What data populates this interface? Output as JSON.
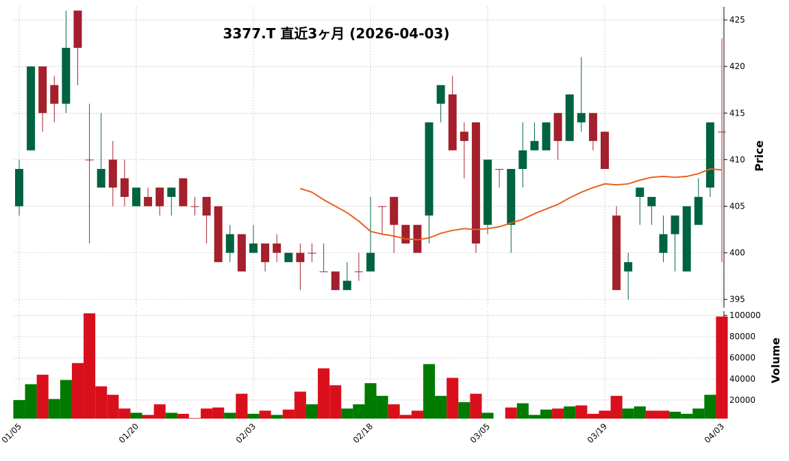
{
  "chart_data": {
    "type": "candlestick",
    "title": "3377.T  直近3ヶ月  (2026-04-03)",
    "categories": [
      "01/05",
      null,
      null,
      null,
      null,
      null,
      null,
      null,
      null,
      null,
      "01/20",
      null,
      null,
      null,
      null,
      null,
      null,
      null,
      null,
      null,
      "02/03",
      null,
      null,
      null,
      null,
      null,
      null,
      null,
      null,
      null,
      "02/18",
      null,
      null,
      null,
      null,
      null,
      null,
      null,
      null,
      null,
      "03/05",
      null,
      null,
      null,
      null,
      null,
      null,
      null,
      null,
      null,
      "03/19",
      null,
      null,
      null,
      null,
      null,
      null,
      null,
      null,
      null,
      "04/03"
    ],
    "open": [
      405,
      411,
      420,
      418,
      416,
      426,
      410,
      407,
      410,
      408,
      405,
      406,
      407,
      406,
      408,
      405,
      406,
      405,
      400,
      402,
      400,
      401,
      401,
      399,
      400,
      400,
      398,
      398,
      396,
      398,
      398,
      405,
      406,
      403,
      403,
      404,
      416,
      417,
      413,
      414,
      403,
      409,
      403,
      409,
      411,
      411,
      415,
      412,
      414,
      415,
      413,
      404,
      398,
      406,
      405,
      400,
      402,
      398,
      403,
      407,
      413
    ],
    "high": [
      410,
      420,
      420,
      419,
      426,
      426,
      416,
      415,
      412,
      410,
      407,
      407,
      407,
      407,
      408,
      406,
      406,
      405,
      403,
      402,
      403,
      401,
      402,
      400,
      401,
      401,
      401,
      398,
      399,
      400,
      406,
      405,
      406,
      403,
      403,
      414,
      418,
      419,
      414,
      414,
      410,
      409,
      409,
      414,
      414,
      414,
      415,
      417,
      421,
      415,
      413,
      405,
      400,
      407,
      406,
      404,
      404,
      405,
      408,
      414,
      423
    ],
    "low": [
      404,
      411,
      413,
      414,
      415,
      418,
      401,
      407,
      405,
      405,
      405,
      405,
      404,
      404,
      405,
      404,
      401,
      399,
      399,
      398,
      400,
      398,
      399,
      399,
      396,
      399,
      398,
      396,
      396,
      397,
      398,
      402,
      400,
      401,
      400,
      401,
      414,
      411,
      408,
      400,
      402,
      407,
      400,
      407,
      411,
      411,
      410,
      412,
      413,
      411,
      409,
      396,
      395,
      403,
      403,
      399,
      398,
      398,
      403,
      406,
      399
    ],
    "close": [
      409,
      420,
      415,
      416,
      422,
      422,
      410,
      409,
      407,
      406,
      407,
      405,
      405,
      407,
      405,
      405,
      404,
      399,
      402,
      398,
      401,
      399,
      400,
      400,
      399,
      400,
      398,
      396,
      397,
      398,
      400,
      405,
      403,
      401,
      400,
      414,
      418,
      411,
      412,
      401,
      410,
      409,
      409,
      411,
      412,
      414,
      412,
      417,
      415,
      412,
      409,
      396,
      399,
      407,
      406,
      402,
      404,
      405,
      406,
      414,
      413
    ],
    "up_color": "#006340",
    "down_color": "#a3202c",
    "ylim": [
      394.1,
      426.4
    ],
    "yticks": [
      395,
      400,
      405,
      410,
      415,
      420,
      425
    ],
    "ylabel": "Price",
    "grid": true,
    "ma": {
      "color": "#e8601c",
      "values": [
        null,
        null,
        null,
        null,
        null,
        null,
        null,
        null,
        null,
        null,
        null,
        null,
        null,
        null,
        null,
        null,
        null,
        null,
        null,
        null,
        null,
        null,
        null,
        null,
        406.9,
        406.5,
        405.7,
        405.0,
        404.3,
        403.4,
        402.3,
        402.0,
        401.8,
        401.5,
        401.4,
        401.6,
        402.1,
        402.4,
        402.6,
        402.5,
        402.6,
        402.8,
        403.2,
        403.6,
        404.2,
        404.7,
        405.2,
        405.9,
        406.5,
        407.0,
        407.4,
        407.3,
        407.4,
        407.8,
        408.1,
        408.2,
        408.1,
        408.2,
        408.5,
        409.0,
        408.9
      ]
    },
    "volume": {
      "values": [
        20000,
        35000,
        44000,
        21000,
        39000,
        55000,
        102000,
        33000,
        25000,
        12000,
        8000,
        6000,
        16000,
        8000,
        7000,
        3000,
        12000,
        13000,
        8000,
        26000,
        7000,
        10000,
        6000,
        11000,
        28000,
        16000,
        50000,
        34000,
        12000,
        16000,
        36000,
        24000,
        16000,
        6000,
        10000,
        54000,
        24000,
        41000,
        18000,
        26000,
        8000,
        null,
        13000,
        17000,
        6000,
        11000,
        12000,
        14000,
        15000,
        7000,
        10000,
        24000,
        12000,
        14000,
        10000,
        10000,
        9000,
        7000,
        12000,
        25000,
        99000
      ],
      "up_color": "#007a00",
      "down_color": "#d9101c",
      "ylim": [
        2500,
        104000
      ],
      "yticks": [
        20000,
        40000,
        60000,
        80000,
        100000
      ],
      "ylabel": "Volume"
    }
  }
}
